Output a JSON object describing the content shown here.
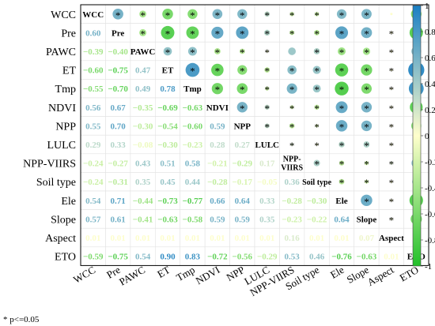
{
  "chart_data": {
    "type": "heatmap",
    "subtype": "correlation-matrix",
    "variables": [
      "WCC",
      "Pre",
      "PAWC",
      "ET",
      "Tmp",
      "NDVI",
      "NPP",
      "LULC",
      "NPP-VIIRS",
      "Soil type",
      "Ele",
      "Slope",
      "Aspect",
      "ETO"
    ],
    "values": [
      [
        1.0,
        0.6,
        -0.39,
        -0.6,
        -0.55,
        0.56,
        0.55,
        0.29,
        -0.24,
        -0.24,
        0.54,
        0.57,
        0.01,
        -0.59
      ],
      [
        0.6,
        1.0,
        -0.4,
        -0.75,
        -0.7,
        0.67,
        0.7,
        0.33,
        -0.27,
        -0.31,
        0.71,
        0.61,
        0.01,
        -0.75
      ],
      [
        -0.39,
        -0.4,
        1.0,
        0.47,
        0.49,
        -0.35,
        -0.3,
        -0.08,
        0.43,
        0.35,
        -0.44,
        -0.41,
        0.01,
        0.54
      ],
      [
        -0.6,
        -0.75,
        0.47,
        1.0,
        0.78,
        -0.69,
        -0.54,
        -0.3,
        0.51,
        0.45,
        -0.73,
        -0.63,
        0.01,
        0.9
      ],
      [
        -0.55,
        -0.7,
        0.49,
        0.78,
        1.0,
        -0.63,
        -0.6,
        -0.23,
        0.58,
        0.44,
        -0.77,
        -0.58,
        0.01,
        0.83
      ],
      [
        0.56,
        0.67,
        -0.35,
        -0.69,
        -0.63,
        1.0,
        0.59,
        0.28,
        -0.21,
        -0.28,
        0.66,
        0.59,
        0.01,
        -0.72
      ],
      [
        0.55,
        0.7,
        -0.3,
        -0.54,
        -0.6,
        0.59,
        1.0,
        0.27,
        -0.29,
        -0.17,
        0.64,
        0.59,
        0.01,
        -0.56
      ],
      [
        0.29,
        0.33,
        -0.08,
        -0.3,
        -0.23,
        0.28,
        0.27,
        1.0,
        0.17,
        -0.05,
        0.33,
        0.35,
        0.01,
        -0.29
      ],
      [
        -0.24,
        -0.27,
        0.43,
        0.51,
        0.58,
        -0.21,
        -0.29,
        0.17,
        1.0,
        0.36,
        -0.28,
        -0.23,
        0.16,
        0.53
      ],
      [
        -0.24,
        -0.31,
        0.35,
        0.45,
        0.44,
        -0.28,
        -0.17,
        -0.05,
        0.36,
        1.0,
        -0.3,
        -0.22,
        0.01,
        0.46
      ],
      [
        0.54,
        0.71,
        -0.44,
        -0.73,
        -0.77,
        0.66,
        0.64,
        0.33,
        -0.28,
        -0.3,
        1.0,
        0.64,
        0.01,
        -0.76
      ],
      [
        0.57,
        0.61,
        -0.41,
        -0.63,
        -0.58,
        0.59,
        0.59,
        0.35,
        -0.23,
        -0.22,
        0.64,
        1.0,
        0.07,
        -0.63
      ],
      [
        0.01,
        0.01,
        0.01,
        0.01,
        0.01,
        0.01,
        0.01,
        0.01,
        0.16,
        0.01,
        0.01,
        0.07,
        1.0,
        0.01
      ],
      [
        -0.59,
        -0.75,
        0.54,
        0.9,
        0.83,
        -0.72,
        -0.56,
        -0.29,
        0.53,
        0.46,
        -0.76,
        -0.63,
        0.01,
        1.0
      ]
    ],
    "lower_triangle_labels": [
      [
        "0.60"
      ],
      [
        "−0.39",
        "−0.40"
      ],
      [
        "−0.60",
        "−0.75",
        "0.47"
      ],
      [
        "−0.55",
        "−0.70",
        "0.49",
        "0.78"
      ],
      [
        "0.56",
        "0.67",
        "−0.35",
        "−0.69",
        "−0.63"
      ],
      [
        "0.55",
        "0.70",
        "−0.30",
        "−0.54",
        "−0.60",
        "0.59"
      ],
      [
        "0.29",
        "0.33",
        "−0.08",
        "−0.30",
        "−0.23",
        "0.28",
        "0.27"
      ],
      [
        "−0.24",
        "−0.27",
        "0.43",
        "0.51",
        "0.58",
        "−0.21",
        "−0.29",
        "0.17"
      ],
      [
        "−0.24",
        "−0.31",
        "0.35",
        "0.45",
        "0.44",
        "−0.28",
        "−0.17",
        "−0.05",
        "0.36"
      ],
      [
        "0.54",
        "0.71",
        "−0.44",
        "−0.73",
        "−0.77",
        "0.66",
        "0.64",
        "0.33",
        "−0.28",
        "−0.30"
      ],
      [
        "0.57",
        "0.61",
        "−0.41",
        "−0.63",
        "−0.58",
        "0.59",
        "0.59",
        "0.35",
        "−0.23",
        "−0.22",
        "0.64"
      ],
      [
        "0.01",
        "0.01",
        "0.01",
        "0.01",
        "0.01",
        "0.01",
        "0.01",
        "0.01",
        "0.16",
        "0.01",
        "0.01",
        "0.07"
      ],
      [
        "−0.59",
        "−0.75",
        "0.54",
        "0.90",
        "0.83",
        "−0.72",
        "−0.56",
        "−0.29",
        "0.53",
        "0.46",
        "−0.76",
        "−0.63",
        "0.01"
      ]
    ],
    "significant_upper": [
      [
        1,
        1,
        1,
        1,
        1,
        1,
        1,
        1,
        1,
        1,
        1,
        0,
        1
      ],
      [
        1,
        1,
        1,
        1,
        1,
        1,
        1,
        1,
        1,
        1,
        1,
        0,
        1
      ],
      [
        1,
        1,
        1,
        1,
        1,
        0,
        1,
        1,
        1,
        1,
        0,
        1
      ],
      [
        1,
        1,
        1,
        1,
        1,
        1,
        1,
        1,
        1,
        1,
        1
      ],
      [
        1,
        1,
        1,
        1,
        1,
        1,
        1,
        1,
        1,
        1
      ],
      [
        1,
        1,
        1,
        1,
        1,
        1,
        1,
        1,
        1
      ],
      [
        1,
        1,
        1,
        1,
        1,
        1,
        1,
        1
      ],
      [
        1,
        1,
        1,
        1,
        1,
        0,
        1
      ],
      [
        1,
        1,
        1,
        1,
        1,
        1
      ],
      [
        1,
        1,
        1,
        1,
        1
      ],
      [
        1,
        1,
        1,
        1
      ],
      [
        1,
        0,
        1
      ],
      [
        1
      ]
    ],
    "colorbar": {
      "range": [
        -1,
        1
      ],
      "ticks": [
        "1",
        "0.8",
        "0.6",
        "0.4",
        "0.2",
        "0",
        "-0.2",
        "-0.4",
        "-0.6",
        "-0.8",
        "-1"
      ],
      "positive_color": "#1a7fc4",
      "zero_color": "#ffffcc",
      "negative_color": "#22c02a"
    },
    "significance_marker": "*",
    "footnote": "* p<=0.05"
  }
}
